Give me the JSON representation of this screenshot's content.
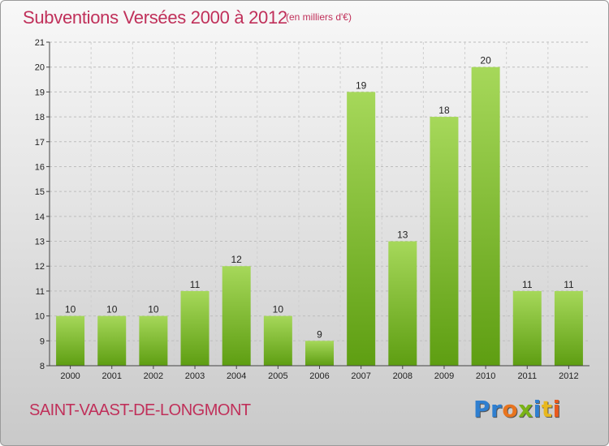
{
  "header": {
    "title": "Subventions Versées 2000 à 2012",
    "unit": "(en milliers d'€)"
  },
  "footer": {
    "town": "SAINT-VAAST-DE-LONGMONT",
    "logo_letters": [
      {
        "ch": "P",
        "color": "#2f7fd0"
      },
      {
        "ch": "r",
        "color": "#2f7fd0"
      },
      {
        "ch": "o",
        "color": "#e8741e"
      },
      {
        "ch": "x",
        "color": "#7ab317"
      },
      {
        "ch": "i",
        "color": "#2f7fd0"
      },
      {
        "ch": "t",
        "color": "#e8b81e"
      },
      {
        "ch": "i",
        "color": "#e85a1e"
      }
    ]
  },
  "colors": {
    "bar_top": "#a6d85a",
    "bar_bottom": "#5e9e12",
    "title": "#c0305a"
  },
  "chart_data": {
    "type": "bar",
    "title": "Subventions Versées 2000 à 2012",
    "categories": [
      "2000",
      "2001",
      "2002",
      "2003",
      "2004",
      "2005",
      "2006",
      "2007",
      "2008",
      "2009",
      "2010",
      "2011",
      "2012"
    ],
    "values": [
      10,
      10,
      10,
      11,
      12,
      10,
      9,
      19,
      13,
      18,
      20,
      11,
      11
    ],
    "ylim": [
      8,
      21
    ],
    "yticks": [
      8,
      9,
      10,
      11,
      12,
      13,
      14,
      15,
      16,
      17,
      18,
      19,
      20,
      21
    ],
    "grid": true,
    "legend": "none"
  }
}
